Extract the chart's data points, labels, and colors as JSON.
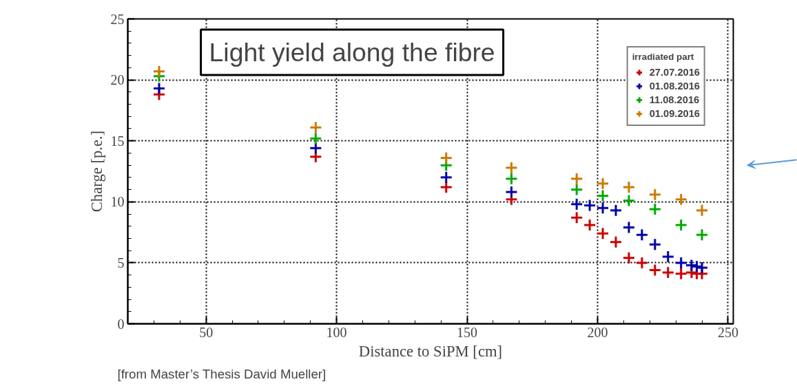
{
  "chart_data": {
    "type": "scatter",
    "title": "Light yield along the fibre",
    "xlabel": "Distance to SiPM [cm]",
    "ylabel": "Charge [p.e.]",
    "legend_title": "irradiated part",
    "annotations": [
      "[from Master’s Thesis David Mueller]"
    ],
    "xlim": [
      20,
      252
    ],
    "ylim": [
      0,
      25
    ],
    "xticks": [
      50,
      100,
      150,
      200,
      250
    ],
    "yticks": [
      0,
      5,
      10,
      15,
      20,
      25
    ],
    "grid": true,
    "legend": "top right",
    "marker": "cross",
    "series": [
      {
        "name": "27.07.2016",
        "color": "#cc0000",
        "x": [
          32,
          92,
          142,
          167,
          192,
          197,
          202,
          207,
          212,
          217,
          222,
          227,
          232,
          236,
          238,
          240
        ],
        "values": [
          18.8,
          13.7,
          11.2,
          10.2,
          8.7,
          8.1,
          7.4,
          6.7,
          5.4,
          5.0,
          4.4,
          4.2,
          4.1,
          4.2,
          4.1,
          4.1
        ]
      },
      {
        "name": "01.08.2016",
        "color": "#0000aa",
        "x": [
          32,
          92,
          142,
          167,
          192,
          197,
          202,
          207,
          212,
          217,
          222,
          227,
          232,
          236,
          238,
          240
        ],
        "values": [
          19.3,
          14.4,
          12.0,
          10.8,
          9.8,
          9.7,
          9.5,
          9.3,
          7.9,
          7.3,
          6.5,
          5.5,
          5.0,
          4.8,
          4.7,
          4.6
        ]
      },
      {
        "name": "11.08.2016",
        "color": "#00aa00",
        "x": [
          32,
          92,
          142,
          167,
          192,
          202,
          212,
          222,
          232,
          240
        ],
        "values": [
          20.3,
          15.2,
          13.0,
          11.9,
          11.0,
          10.5,
          10.1,
          9.4,
          8.1,
          7.3
        ]
      },
      {
        "name": "01.09.2016",
        "color": "#cc7a00",
        "x": [
          32,
          92,
          142,
          167,
          192,
          202,
          212,
          222,
          232,
          240
        ],
        "values": [
          20.7,
          16.1,
          13.6,
          12.8,
          11.9,
          11.5,
          11.2,
          10.6,
          10.2,
          9.3
        ]
      }
    ]
  }
}
